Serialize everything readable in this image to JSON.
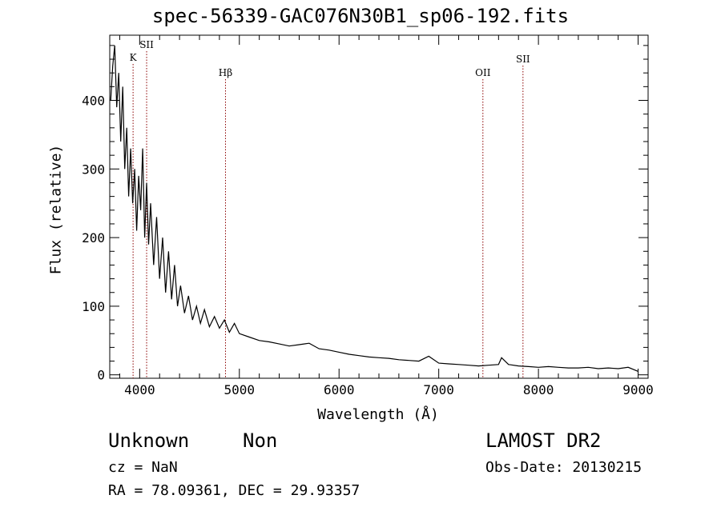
{
  "header": {
    "title": "spec-56339-GAC076N30B1_sp06-192.fits"
  },
  "footer": {
    "object_type": "Unknown",
    "object_class": "Non",
    "survey": "LAMOST DR2",
    "cz": "cz = NaN",
    "obs_date": "Obs-Date: 20130215",
    "radec": "RA =  78.09361, DEC =  29.93357"
  },
  "chart_data": {
    "type": "line",
    "title": "spec-56339-GAC076N30B1_sp06-192.fits",
    "xlabel": "Wavelength (Å)",
    "ylabel": "Flux (relative)",
    "xlim": [
      3700,
      9100
    ],
    "ylim": [
      -5,
      495
    ],
    "x_ticks": [
      4000,
      5000,
      6000,
      7000,
      8000,
      9000
    ],
    "y_ticks": [
      0,
      100,
      200,
      300,
      400
    ],
    "grid": false,
    "line_color": "#000000",
    "marker_color": "#8b0000",
    "spectral_lines": [
      {
        "label": "K",
        "wavelength": 3934
      },
      {
        "label": "SII",
        "wavelength": 4070
      },
      {
        "label": "Hβ",
        "wavelength": 4861
      },
      {
        "label": "OII",
        "wavelength": 7443
      },
      {
        "label": "SII",
        "wavelength": 7845
      }
    ],
    "series": [
      {
        "x": [
          3710,
          3730,
          3750,
          3770,
          3790,
          3810,
          3830,
          3850,
          3870,
          3890,
          3910,
          3930,
          3950,
          3970,
          3990,
          4010,
          4030,
          4050,
          4070,
          4090,
          4110,
          4140,
          4170,
          4200,
          4230,
          4260,
          4290,
          4320,
          4350,
          4380,
          4410,
          4450,
          4490,
          4530,
          4570,
          4610,
          4650,
          4700,
          4750,
          4800,
          4850,
          4900,
          4950,
          5000,
          5100,
          5200,
          5300,
          5400,
          5500,
          5600,
          5700,
          5800,
          5900,
          6000,
          6100,
          6200,
          6300,
          6400,
          6500,
          6600,
          6700,
          6800,
          6900,
          7000,
          7100,
          7200,
          7300,
          7400,
          7500,
          7600,
          7630,
          7700,
          7800,
          7900,
          8000,
          8100,
          8200,
          8300,
          8400,
          8500,
          8600,
          8700,
          8800,
          8900,
          9000
        ],
        "y": [
          400,
          450,
          480,
          390,
          440,
          340,
          420,
          300,
          360,
          260,
          330,
          250,
          300,
          210,
          290,
          240,
          330,
          200,
          280,
          190,
          250,
          160,
          230,
          140,
          200,
          120,
          180,
          110,
          160,
          100,
          130,
          90,
          115,
          80,
          100,
          75,
          95,
          70,
          85,
          68,
          80,
          62,
          75,
          60,
          55,
          50,
          48,
          45,
          42,
          44,
          46,
          38,
          36,
          33,
          30,
          28,
          26,
          25,
          24,
          22,
          21,
          20,
          27,
          17,
          16,
          15,
          14,
          13,
          14,
          15,
          25,
          15,
          13,
          12,
          11,
          12,
          11,
          10,
          10,
          11,
          9,
          10,
          9,
          11,
          5
        ]
      }
    ]
  }
}
